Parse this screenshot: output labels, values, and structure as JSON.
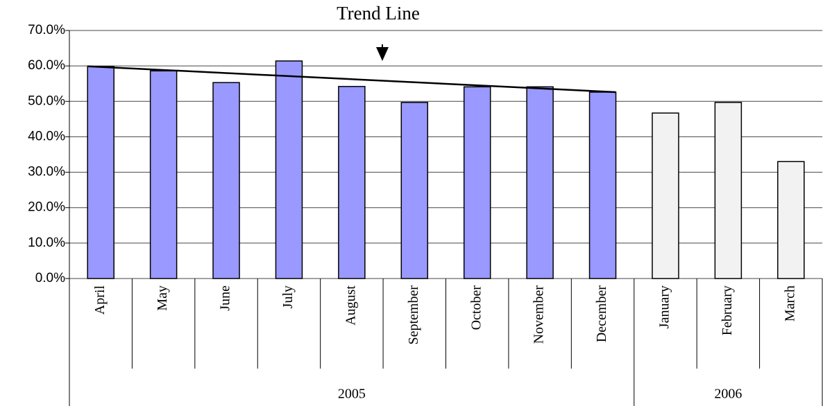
{
  "chart_data": {
    "type": "bar",
    "categories": [
      "April",
      "May",
      "June",
      "July",
      "August",
      "September",
      "October",
      "November",
      "December",
      "January",
      "February",
      "March"
    ],
    "values": [
      59.8,
      58.6,
      55.3,
      61.4,
      54.2,
      49.7,
      54.1,
      54.1,
      52.6,
      46.7,
      49.7,
      33.0
    ],
    "colors": [
      "#9999ff",
      "#9999ff",
      "#9999ff",
      "#9999ff",
      "#9999ff",
      "#9999ff",
      "#9999ff",
      "#9999ff",
      "#9999ff",
      "#f2f2f2",
      "#f2f2f2",
      "#f2f2f2"
    ],
    "groups": [
      {
        "label": "2005",
        "count": 9
      },
      {
        "label": "2006",
        "count": 3
      }
    ],
    "ylim": [
      0,
      70
    ],
    "yticks": [
      {
        "value": 0,
        "label": "0.0%"
      },
      {
        "value": 10,
        "label": "10.0%"
      },
      {
        "value": 20,
        "label": "20.0%"
      },
      {
        "value": 30,
        "label": "30.0%"
      },
      {
        "value": 40,
        "label": "40.0%"
      },
      {
        "value": 50,
        "label": "50.0%"
      },
      {
        "value": 60,
        "label": "60.0%"
      },
      {
        "value": 70,
        "label": "70.0%"
      }
    ],
    "grid": true,
    "trend_line": {
      "label": "Trend Line",
      "start": 59.9,
      "end": 52.6
    }
  }
}
